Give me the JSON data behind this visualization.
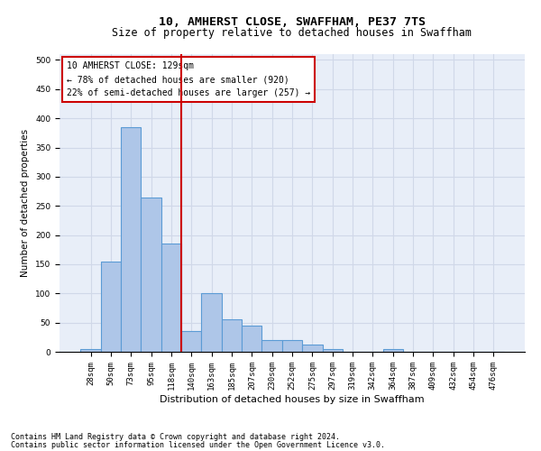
{
  "title": "10, AMHERST CLOSE, SWAFFHAM, PE37 7TS",
  "subtitle": "Size of property relative to detached houses in Swaffham",
  "xlabel": "Distribution of detached houses by size in Swaffham",
  "ylabel": "Number of detached properties",
  "footer_line1": "Contains HM Land Registry data © Crown copyright and database right 2024.",
  "footer_line2": "Contains public sector information licensed under the Open Government Licence v3.0.",
  "bar_labels": [
    "28sqm",
    "50sqm",
    "73sqm",
    "95sqm",
    "118sqm",
    "140sqm",
    "163sqm",
    "185sqm",
    "207sqm",
    "230sqm",
    "252sqm",
    "275sqm",
    "297sqm",
    "319sqm",
    "342sqm",
    "364sqm",
    "387sqm",
    "409sqm",
    "432sqm",
    "454sqm",
    "476sqm"
  ],
  "bar_values": [
    5,
    155,
    385,
    265,
    185,
    35,
    100,
    55,
    45,
    20,
    20,
    12,
    5,
    0,
    0,
    5,
    0,
    0,
    0,
    0,
    0
  ],
  "bar_color": "#aec6e8",
  "bar_edge_color": "#5b9bd5",
  "grid_color": "#d0d8e8",
  "background_color": "#e8eef8",
  "annotation_text": "10 AMHERST CLOSE: 129sqm\n← 78% of detached houses are smaller (920)\n22% of semi-detached houses are larger (257) →",
  "annotation_box_color": "#ffffff",
  "annotation_box_edge_color": "#cc0000",
  "annotation_text_color": "#000000",
  "vline_x": 4.5,
  "vline_color": "#cc0000",
  "ylim": [
    0,
    510
  ],
  "yticks": [
    0,
    50,
    100,
    150,
    200,
    250,
    300,
    350,
    400,
    450,
    500
  ],
  "title_fontsize": 9.5,
  "subtitle_fontsize": 8.5,
  "xlabel_fontsize": 8,
  "ylabel_fontsize": 7.5,
  "tick_fontsize": 6.5,
  "annotation_fontsize": 7,
  "footer_fontsize": 6
}
